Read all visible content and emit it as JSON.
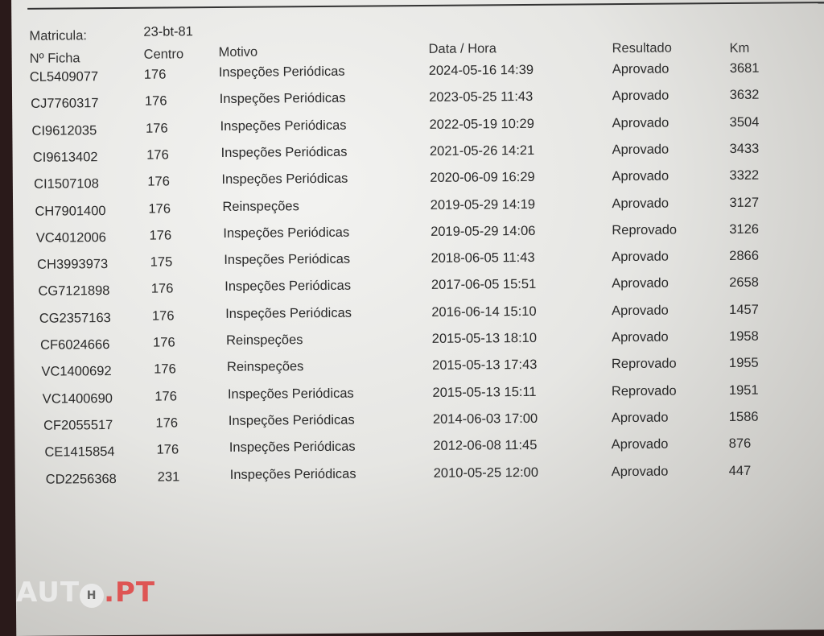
{
  "matricula_label": "Matricula:",
  "matricula": "23-bt-81",
  "headers": {
    "ficha": "Nº Ficha",
    "centro": "Centro",
    "motivo": "Motivo",
    "data": "Data / Hora",
    "resultado": "Resultado",
    "km": "Km"
  },
  "rows": [
    {
      "ficha": "CL5409077",
      "centro": "176",
      "motivo": "Inspeções Periódicas",
      "data": "2024-05-16 14:39",
      "resultado": "Aprovado",
      "km": "3681"
    },
    {
      "ficha": "CJ7760317",
      "centro": "176",
      "motivo": "Inspeções Periódicas",
      "data": "2023-05-25 11:43",
      "resultado": "Aprovado",
      "km": "3632"
    },
    {
      "ficha": "CI9612035",
      "centro": "176",
      "motivo": "Inspeções Periódicas",
      "data": "2022-05-19 10:29",
      "resultado": "Aprovado",
      "km": "3504"
    },
    {
      "ficha": "CI9613402",
      "centro": "176",
      "motivo": "Inspeções Periódicas",
      "data": "2021-05-26 14:21",
      "resultado": "Aprovado",
      "km": "3433"
    },
    {
      "ficha": "CI1507108",
      "centro": "176",
      "motivo": "Inspeções Periódicas",
      "data": "2020-06-09 16:29",
      "resultado": "Aprovado",
      "km": "3322"
    },
    {
      "ficha": "CH7901400",
      "centro": "176",
      "motivo": "Reinspeções",
      "data": "2019-05-29 14:19",
      "resultado": "Aprovado",
      "km": "3127"
    },
    {
      "ficha": "VC4012006",
      "centro": "176",
      "motivo": "Inspeções Periódicas",
      "data": "2019-05-29 14:06",
      "resultado": "Reprovado",
      "km": "3126"
    },
    {
      "ficha": "CH3993973",
      "centro": "175",
      "motivo": "Inspeções Periódicas",
      "data": "2018-06-05 11:43",
      "resultado": "Aprovado",
      "km": "2866"
    },
    {
      "ficha": "CG7121898",
      "centro": "176",
      "motivo": "Inspeções Periódicas",
      "data": "2017-06-05 15:51",
      "resultado": "Aprovado",
      "km": "2658"
    },
    {
      "ficha": "CG2357163",
      "centro": "176",
      "motivo": "Inspeções Periódicas",
      "data": "2016-06-14 15:10",
      "resultado": "Aprovado",
      "km": "1457"
    },
    {
      "ficha": "CF6024666",
      "centro": "176",
      "motivo": "Reinspeções",
      "data": "2015-05-13 18:10",
      "resultado": "Aprovado",
      "km": "1958"
    },
    {
      "ficha": "VC1400692",
      "centro": "176",
      "motivo": "Reinspeções",
      "data": "2015-05-13 17:43",
      "resultado": "Reprovado",
      "km": "1955"
    },
    {
      "ficha": "VC1400690",
      "centro": "176",
      "motivo": "Inspeções Periódicas",
      "data": "2015-05-13 15:11",
      "resultado": "Reprovado",
      "km": "1951"
    },
    {
      "ficha": "CF2055517",
      "centro": "176",
      "motivo": "Inspeções Periódicas",
      "data": "2014-06-03 17:00",
      "resultado": "Aprovado",
      "km": "1586"
    },
    {
      "ficha": "CE1415854",
      "centro": "176",
      "motivo": "Inspeções Periódicas",
      "data": "2012-06-08 11:45",
      "resultado": "Aprovado",
      "km": "876"
    },
    {
      "ficha": "CD2256368",
      "centro": "231",
      "motivo": "Inspeções Periódicas",
      "data": "2010-05-25 12:00",
      "resultado": "Aprovado",
      "km": "447"
    }
  ],
  "watermark": {
    "text_left": "AUTO",
    "text_right": ".PT",
    "accent": "#e0403f"
  }
}
